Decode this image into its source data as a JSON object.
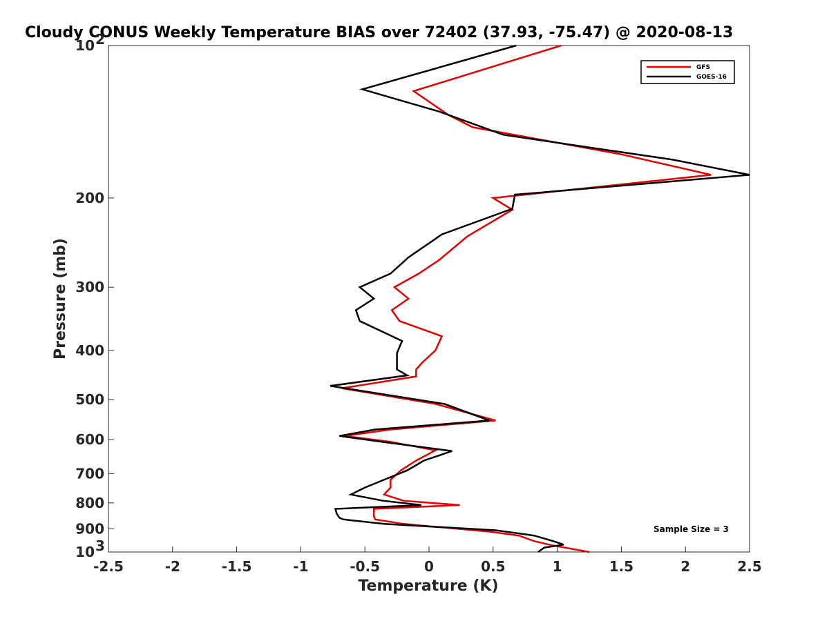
{
  "chart_data": {
    "type": "line",
    "title": "Cloudy CONUS Weekly Temperature BIAS over 72402 (37.93, -75.47) @ 2020-08-13",
    "xlabel": "Temperature (K)",
    "ylabel": "Pressure (mb)",
    "xlim": [
      -2.5,
      2.5
    ],
    "ylim": [
      100,
      1000
    ],
    "y_scale": "log",
    "y_reversed": true,
    "grid": false,
    "legend_position": "top-right",
    "annotation": "Sample Size = 3",
    "x_ticks": [
      {
        "value": -2.5,
        "label": "-2.5"
      },
      {
        "value": -2,
        "label": "-2"
      },
      {
        "value": -1.5,
        "label": "-1.5"
      },
      {
        "value": -1,
        "label": "-1"
      },
      {
        "value": -0.5,
        "label": "-0.5"
      },
      {
        "value": 0,
        "label": "0"
      },
      {
        "value": 0.5,
        "label": "0.5"
      },
      {
        "value": 1,
        "label": "1"
      },
      {
        "value": 1.5,
        "label": "1.5"
      },
      {
        "value": 2,
        "label": "2"
      },
      {
        "value": 2.5,
        "label": "2.5"
      }
    ],
    "y_ticks": [
      {
        "value": 100,
        "label": "10",
        "sup": "2"
      },
      {
        "value": 200,
        "label": "200",
        "sup": ""
      },
      {
        "value": 300,
        "label": "300",
        "sup": ""
      },
      {
        "value": 400,
        "label": "400",
        "sup": ""
      },
      {
        "value": 500,
        "label": "500",
        "sup": ""
      },
      {
        "value": 600,
        "label": "600",
        "sup": ""
      },
      {
        "value": 700,
        "label": "700",
        "sup": ""
      },
      {
        "value": 800,
        "label": "800",
        "sup": ""
      },
      {
        "value": 900,
        "label": "900",
        "sup": ""
      },
      {
        "value": 1000,
        "label": "10",
        "sup": "3"
      }
    ],
    "series": [
      {
        "name": "GFS",
        "color": "#e00000",
        "points": [
          [
            1.03,
            100
          ],
          [
            -0.12,
            123
          ],
          [
            0.15,
            137
          ],
          [
            0.34,
            145
          ],
          [
            1.5,
            164
          ],
          [
            2.2,
            180
          ],
          [
            0.5,
            200
          ],
          [
            0.65,
            211
          ],
          [
            0.3,
            238
          ],
          [
            0.08,
            265
          ],
          [
            -0.08,
            282
          ],
          [
            -0.27,
            300
          ],
          [
            -0.16,
            316
          ],
          [
            -0.29,
            333
          ],
          [
            -0.23,
            350
          ],
          [
            0.1,
            375
          ],
          [
            0.05,
            400
          ],
          [
            -0.05,
            422
          ],
          [
            -0.1,
            436
          ],
          [
            -0.1,
            450
          ],
          [
            -0.68,
            475
          ],
          [
            0.05,
            510
          ],
          [
            0.52,
            550
          ],
          [
            -0.3,
            573
          ],
          [
            -0.66,
            590
          ],
          [
            -0.3,
            606
          ],
          [
            0.05,
            630
          ],
          [
            -0.1,
            660
          ],
          [
            -0.22,
            690
          ],
          [
            -0.3,
            720
          ],
          [
            -0.3,
            746
          ],
          [
            -0.35,
            770
          ],
          [
            -0.2,
            792
          ],
          [
            0.24,
            808
          ],
          [
            -0.43,
            822
          ],
          [
            -0.43,
            840
          ],
          [
            -0.43,
            850
          ],
          [
            -0.42,
            862
          ],
          [
            -0.2,
            880
          ],
          [
            0.48,
            912
          ],
          [
            0.7,
            928
          ],
          [
            0.82,
            952
          ],
          [
            0.96,
            970
          ],
          [
            1.25,
            1000
          ]
        ]
      },
      {
        "name": "GOES-16",
        "color": "#000000",
        "points": [
          [
            0.68,
            100
          ],
          [
            -0.52,
            122
          ],
          [
            0.08,
            135
          ],
          [
            0.58,
            150
          ],
          [
            1.9,
            168
          ],
          [
            2.5,
            180
          ],
          [
            0.67,
            197
          ],
          [
            0.65,
            210
          ],
          [
            0.1,
            236
          ],
          [
            -0.16,
            262
          ],
          [
            -0.3,
            282
          ],
          [
            -0.54,
            300
          ],
          [
            -0.43,
            316
          ],
          [
            -0.57,
            333
          ],
          [
            -0.54,
            350
          ],
          [
            -0.21,
            383
          ],
          [
            -0.25,
            405
          ],
          [
            -0.25,
            422
          ],
          [
            -0.25,
            436
          ],
          [
            -0.17,
            448
          ],
          [
            -0.77,
            470
          ],
          [
            0.12,
            510
          ],
          [
            0.47,
            550
          ],
          [
            -0.42,
            573
          ],
          [
            -0.7,
            590
          ],
          [
            -0.37,
            606
          ],
          [
            0.18,
            632
          ],
          [
            -0.04,
            660
          ],
          [
            -0.17,
            690
          ],
          [
            -0.38,
            725
          ],
          [
            -0.5,
            746
          ],
          [
            -0.61,
            770
          ],
          [
            -0.36,
            792
          ],
          [
            -0.06,
            808
          ],
          [
            -0.73,
            822
          ],
          [
            -0.72,
            840
          ],
          [
            -0.7,
            855
          ],
          [
            -0.67,
            862
          ],
          [
            -0.35,
            880
          ],
          [
            0.52,
            906
          ],
          [
            0.82,
            928
          ],
          [
            0.97,
            952
          ],
          [
            1.05,
            967
          ],
          [
            0.9,
            980
          ],
          [
            0.85,
            1000
          ]
        ]
      }
    ]
  }
}
